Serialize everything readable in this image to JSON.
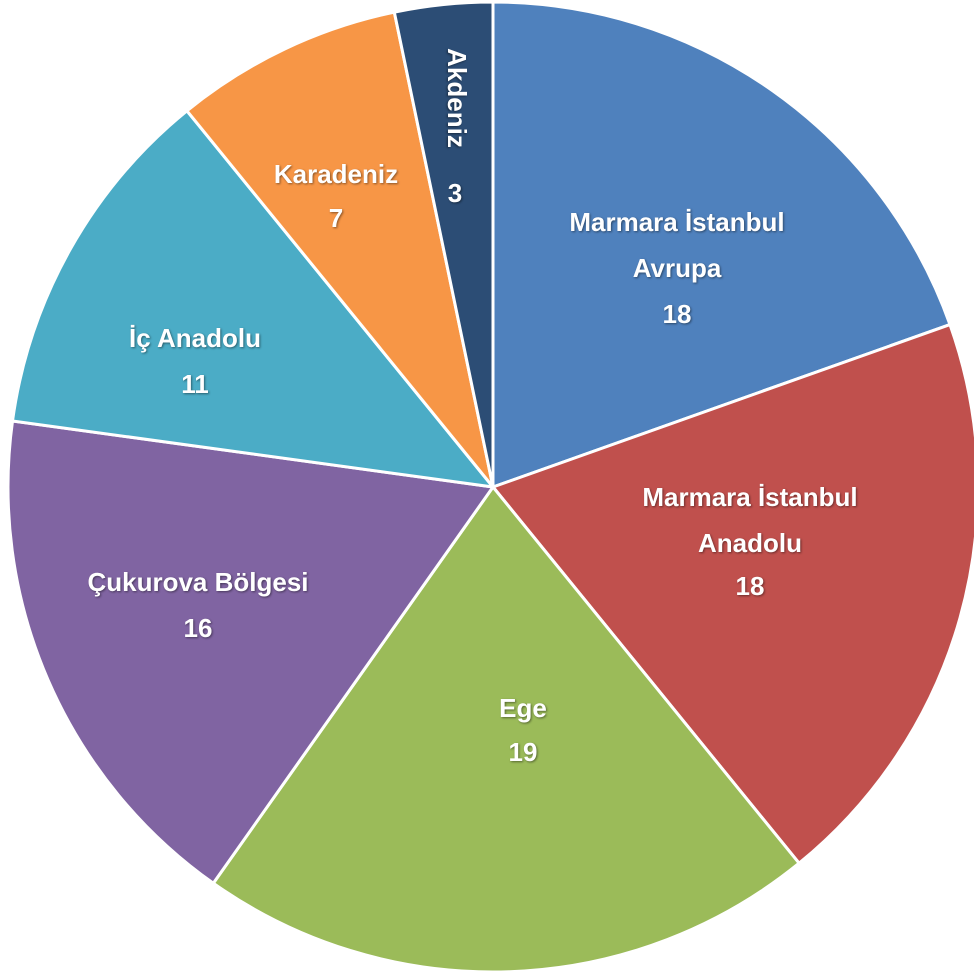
{
  "chart_data": {
    "type": "pie",
    "categories": [
      "Marmara İstanbul Avrupa",
      "Marmara İstanbul Anadolu",
      "Ege",
      "Çukurova Bölgesi",
      "İç Anadolu",
      "Karadeniz",
      "Akdeniz"
    ],
    "values": [
      18,
      18,
      19,
      16,
      11,
      7,
      3
    ],
    "colors": [
      "#4f81bd",
      "#c0504d",
      "#9bbb59",
      "#8064a2",
      "#4bacc6",
      "#f79646",
      "#2c4d75"
    ]
  }
}
